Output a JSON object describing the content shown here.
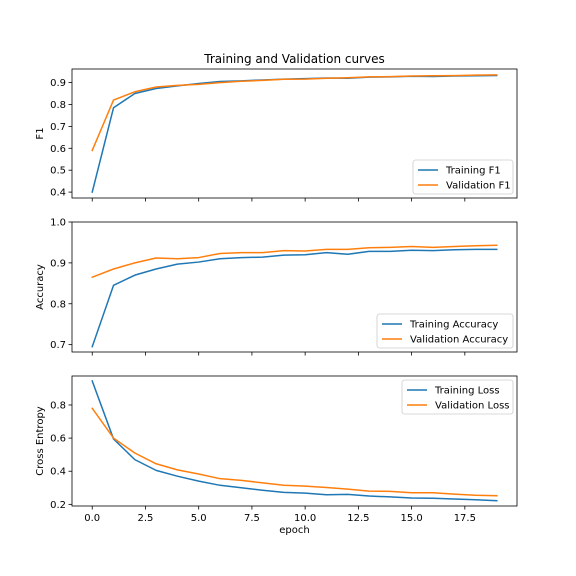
{
  "figure": {
    "title": "Training and Validation curves",
    "xlabel": "epoch"
  },
  "chart_data": [
    {
      "type": "line",
      "title": "Training and Validation curves",
      "xlabel": "",
      "ylabel": "F1",
      "x": [
        0,
        1,
        2,
        3,
        4,
        5,
        6,
        7,
        8,
        9,
        10,
        11,
        12,
        13,
        14,
        15,
        16,
        17,
        18,
        19
      ],
      "xlim": [
        -0.95,
        19.95
      ],
      "ylim": [
        0.373,
        0.962
      ],
      "xticks": [
        0.0,
        2.5,
        5.0,
        7.5,
        10.0,
        12.5,
        15.0,
        17.5
      ],
      "xticklabels": [
        "0.0",
        "2.5",
        "5.0",
        "7.5",
        "10.0",
        "12.5",
        "15.0",
        "17.5"
      ],
      "show_xticklabels": false,
      "yticks": [
        0.4,
        0.5,
        0.6,
        0.7,
        0.8,
        0.9
      ],
      "yticklabels": [
        "0.4",
        "0.5",
        "0.6",
        "0.7",
        "0.8",
        "0.9"
      ],
      "grid": false,
      "legend_position": "lower-right",
      "series": [
        {
          "name": "Training F1",
          "color": "#1f77b4",
          "values": [
            0.4,
            0.785,
            0.85,
            0.873,
            0.885,
            0.896,
            0.905,
            0.908,
            0.912,
            0.916,
            0.918,
            0.921,
            0.92,
            0.925,
            0.926,
            0.929,
            0.928,
            0.93,
            0.931,
            0.932
          ]
        },
        {
          "name": "Validation F1",
          "color": "#ff7f0e",
          "values": [
            0.59,
            0.82,
            0.858,
            0.88,
            0.887,
            0.892,
            0.9,
            0.906,
            0.91,
            0.915,
            0.916,
            0.92,
            0.922,
            0.926,
            0.927,
            0.93,
            0.931,
            0.932,
            0.934,
            0.935
          ]
        }
      ]
    },
    {
      "type": "line",
      "title": "",
      "xlabel": "",
      "ylabel": "Accuracy",
      "x": [
        0,
        1,
        2,
        3,
        4,
        5,
        6,
        7,
        8,
        9,
        10,
        11,
        12,
        13,
        14,
        15,
        16,
        17,
        18,
        19
      ],
      "xlim": [
        -0.95,
        19.95
      ],
      "ylim": [
        0.682,
        1.0
      ],
      "xticks": [
        0.0,
        2.5,
        5.0,
        7.5,
        10.0,
        12.5,
        15.0,
        17.5
      ],
      "xticklabels": [
        "0.0",
        "2.5",
        "5.0",
        "7.5",
        "10.0",
        "12.5",
        "15.0",
        "17.5"
      ],
      "show_xticklabels": false,
      "yticks": [
        0.7,
        0.8,
        0.9,
        1.0
      ],
      "yticklabels": [
        "0.7",
        "0.8",
        "0.9",
        "1.0"
      ],
      "grid": false,
      "legend_position": "lower-right",
      "series": [
        {
          "name": "Training Accuracy",
          "color": "#1f77b4",
          "values": [
            0.695,
            0.845,
            0.87,
            0.885,
            0.897,
            0.902,
            0.91,
            0.913,
            0.914,
            0.919,
            0.92,
            0.925,
            0.921,
            0.928,
            0.928,
            0.931,
            0.93,
            0.932,
            0.933,
            0.933
          ]
        },
        {
          "name": "Validation Accuracy",
          "color": "#ff7f0e",
          "values": [
            0.865,
            0.885,
            0.9,
            0.912,
            0.91,
            0.913,
            0.923,
            0.925,
            0.925,
            0.93,
            0.929,
            0.933,
            0.933,
            0.937,
            0.938,
            0.94,
            0.938,
            0.94,
            0.942,
            0.943
          ]
        }
      ]
    },
    {
      "type": "line",
      "title": "",
      "xlabel": "epoch",
      "ylabel": "Cross Entropy",
      "x": [
        0,
        1,
        2,
        3,
        4,
        5,
        6,
        7,
        8,
        9,
        10,
        11,
        12,
        13,
        14,
        15,
        16,
        17,
        18,
        19
      ],
      "xlim": [
        -0.95,
        19.95
      ],
      "ylim": [
        0.19,
        0.975
      ],
      "xticks": [
        0.0,
        2.5,
        5.0,
        7.5,
        10.0,
        12.5,
        15.0,
        17.5
      ],
      "xticklabels": [
        "0.0",
        "2.5",
        "5.0",
        "7.5",
        "10.0",
        "12.5",
        "15.0",
        "17.5"
      ],
      "show_xticklabels": true,
      "yticks": [
        0.2,
        0.4,
        0.6,
        0.8
      ],
      "yticklabels": [
        "0.2",
        "0.4",
        "0.6",
        "0.8"
      ],
      "grid": false,
      "legend_position": "upper-right",
      "series": [
        {
          "name": "Training Loss",
          "color": "#1f77b4",
          "values": [
            0.945,
            0.595,
            0.47,
            0.405,
            0.37,
            0.34,
            0.315,
            0.3,
            0.285,
            0.272,
            0.268,
            0.258,
            0.26,
            0.25,
            0.245,
            0.238,
            0.237,
            0.232,
            0.228,
            0.222
          ]
        },
        {
          "name": "Validation Loss",
          "color": "#ff7f0e",
          "values": [
            0.78,
            0.6,
            0.51,
            0.445,
            0.408,
            0.383,
            0.355,
            0.345,
            0.33,
            0.315,
            0.31,
            0.302,
            0.292,
            0.28,
            0.278,
            0.27,
            0.27,
            0.262,
            0.255,
            0.252
          ]
        }
      ]
    }
  ]
}
